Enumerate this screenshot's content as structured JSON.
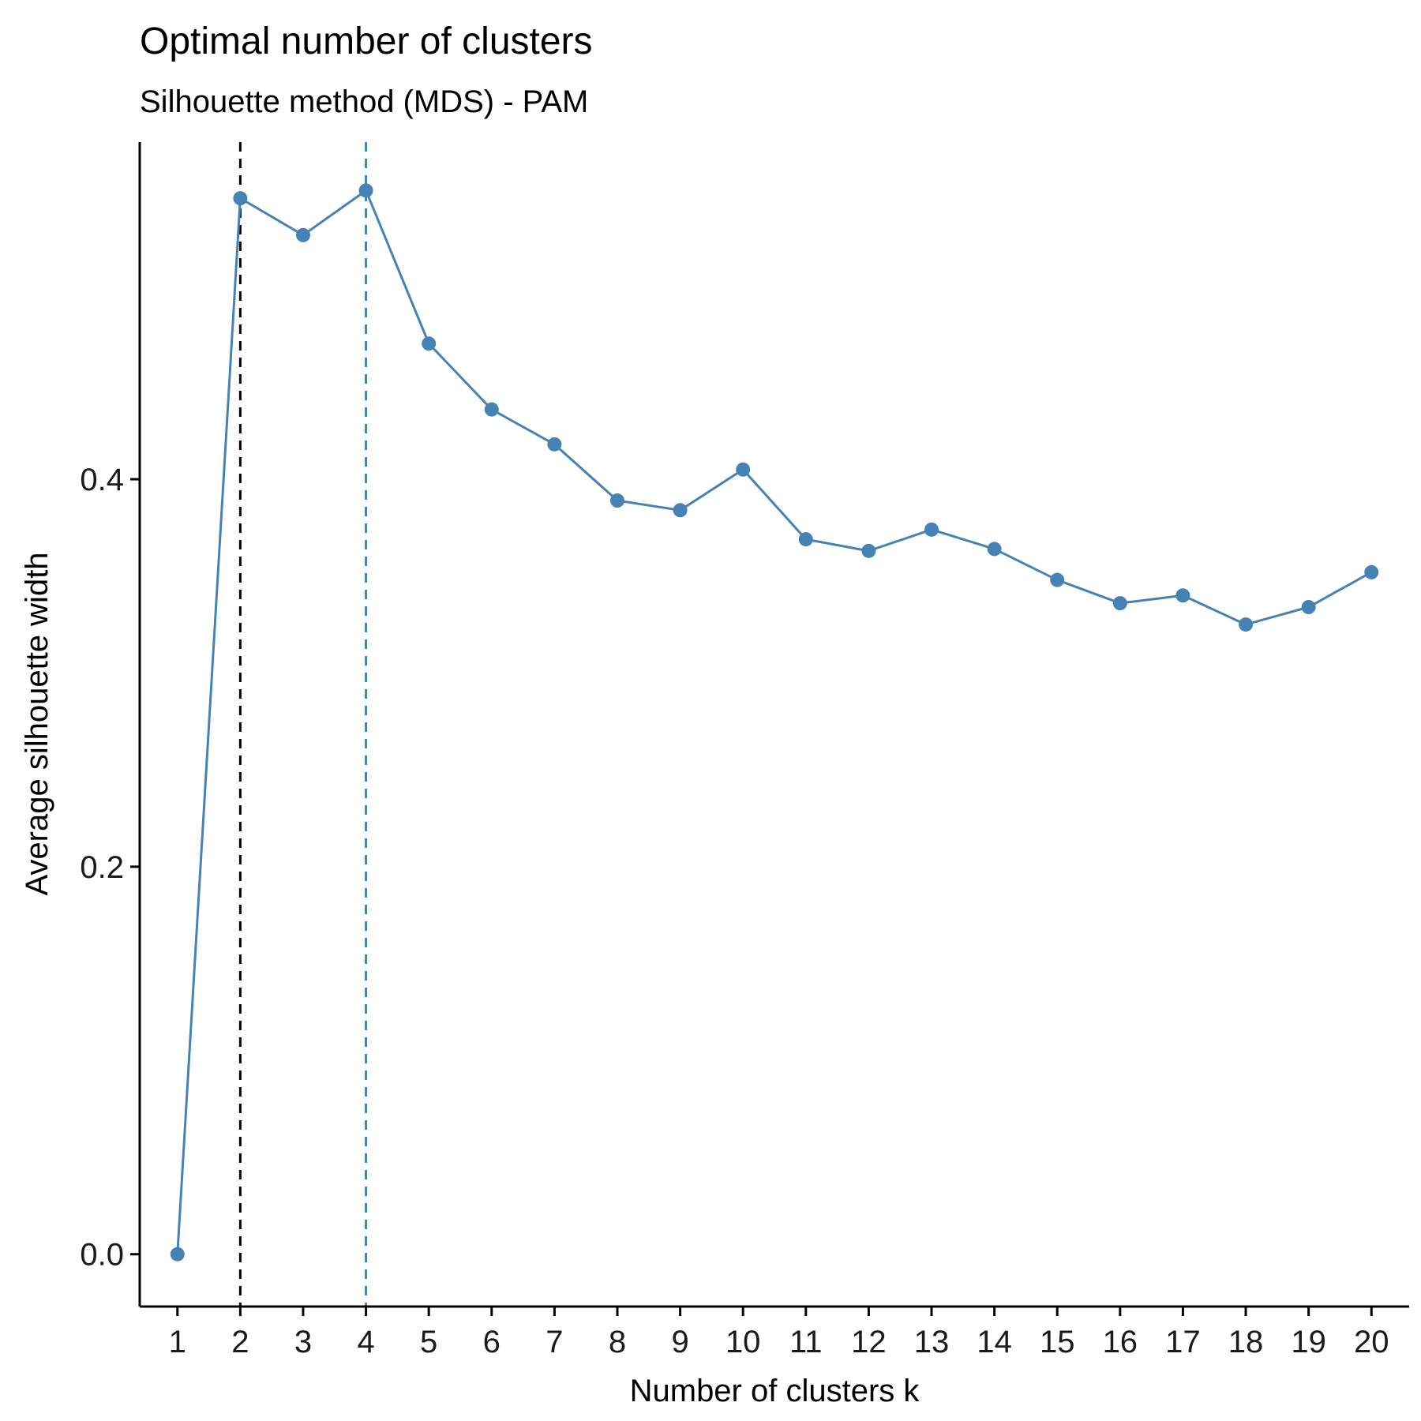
{
  "chart_data": {
    "type": "line",
    "title": "Optimal number of clusters",
    "subtitle": "Silhouette method (MDS) - PAM",
    "xlabel": "Number of clusters k",
    "ylabel": "Average silhouette width",
    "x": [
      1,
      2,
      3,
      4,
      5,
      6,
      7,
      8,
      9,
      10,
      11,
      12,
      13,
      14,
      15,
      16,
      17,
      18,
      19,
      20
    ],
    "x_tick_labels": [
      "1",
      "2",
      "3",
      "4",
      "5",
      "6",
      "7",
      "8",
      "9",
      "10",
      "11",
      "12",
      "13",
      "14",
      "15",
      "16",
      "17",
      "18",
      "19",
      "20"
    ],
    "series": [
      {
        "values": [
          0.0,
          0.545,
          0.526,
          0.549,
          0.47,
          0.436,
          0.418,
          0.389,
          0.384,
          0.405,
          0.369,
          0.363,
          0.374,
          0.364,
          0.348,
          0.336,
          0.34,
          0.325,
          0.334,
          0.352
        ],
        "color": "#4682B4"
      }
    ],
    "y_ticks": [
      0.0,
      0.2,
      0.4
    ],
    "y_tick_labels": [
      "0.0",
      "0.2",
      "0.4"
    ],
    "xlim": [
      0.4,
      20.6
    ],
    "ylim": [
      -0.027,
      0.574
    ],
    "reference_lines": [
      {
        "x": 2,
        "style": "dashed",
        "color": "#000000"
      },
      {
        "x": 4,
        "style": "dashed",
        "color": "#4682B4"
      }
    ],
    "grid": false,
    "legend": "none"
  }
}
